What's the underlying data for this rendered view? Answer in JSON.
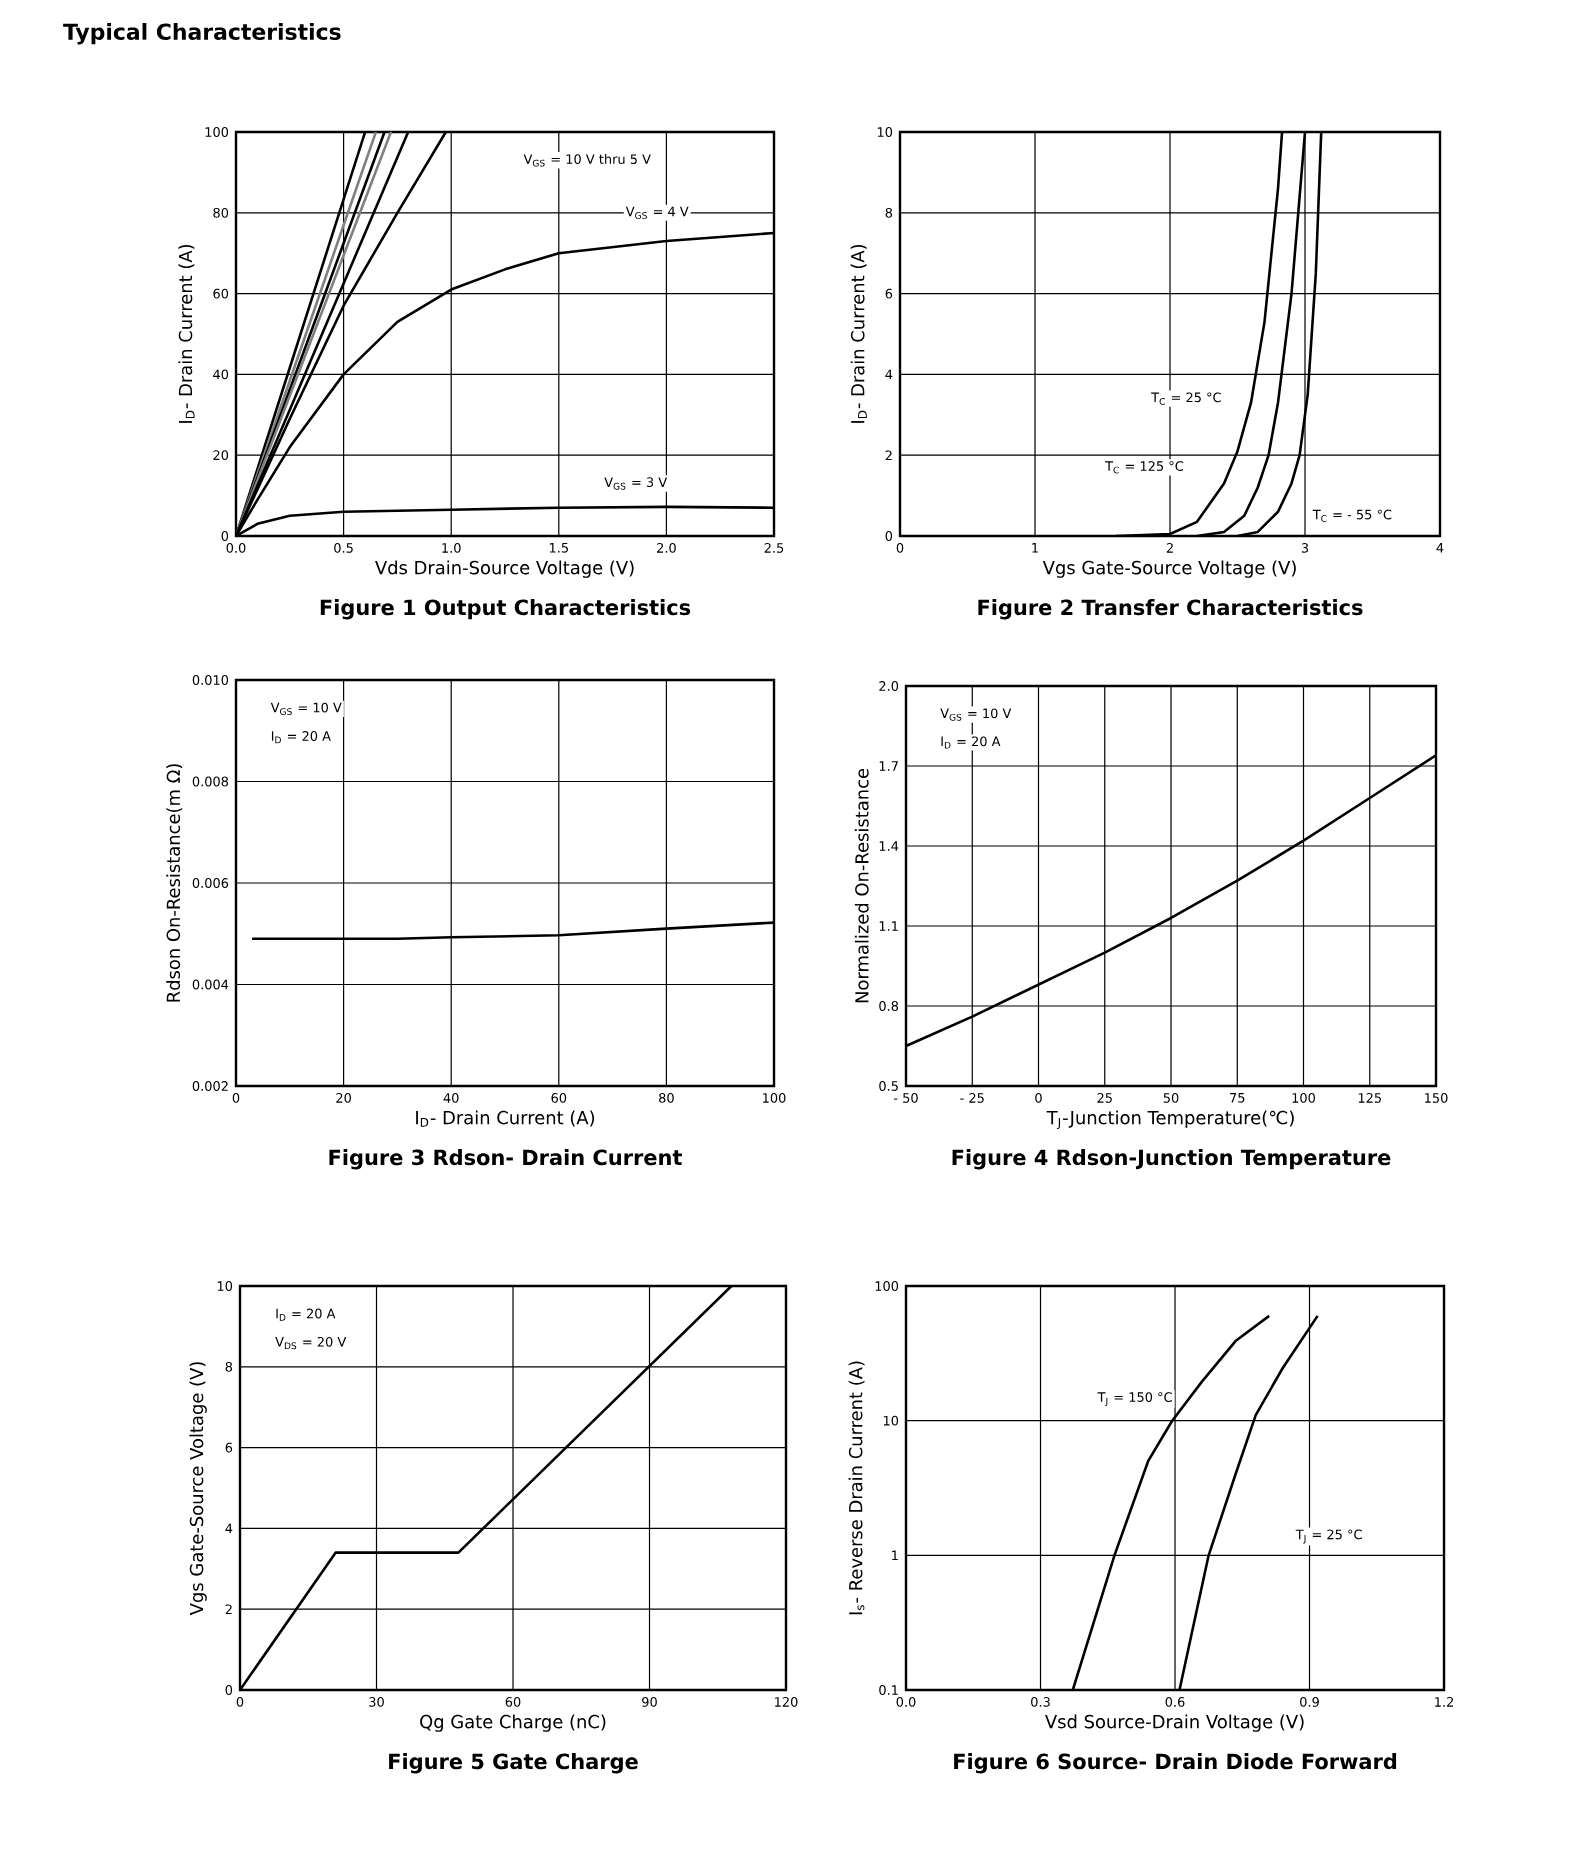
{
  "chart_data": [
    {
      "type": "other",
      "title": "Typical Characteristics"
    },
    {
      "type": "line",
      "title": "Figure 1 Output Characteristics",
      "xlabel": "Vds Drain-Source Voltage (V)",
      "ylabel": "I$_{D}$- Drain Current (A)",
      "xlim": [
        0,
        2.5
      ],
      "ylim": [
        0,
        100
      ],
      "xticks": [
        {
          "value": 0,
          "label": "0.0"
        },
        0.5,
        {
          "value": 1,
          "label": "1.0"
        },
        1.5,
        {
          "value": 2,
          "label": "2.0"
        },
        2.5
      ],
      "yticks": [
        0,
        20,
        40,
        60,
        80,
        100
      ],
      "grid": true,
      "series": [
        {
          "color": "#000000",
          "x": [
            0,
            0.3,
            0.6
          ],
          "values": [
            0,
            50,
            100
          ]
        },
        {
          "color": "#808080",
          "x": [
            0,
            0.325,
            0.65
          ],
          "values": [
            0,
            50,
            100
          ]
        },
        {
          "color": "#000000",
          "x": [
            0,
            0.345,
            0.69
          ],
          "values": [
            0,
            50,
            100
          ]
        },
        {
          "color": "#808080",
          "x": [
            0,
            0.36,
            0.72
          ],
          "values": [
            0,
            50,
            100
          ]
        },
        {
          "color": "#000000",
          "x": [
            0,
            0.4,
            0.8
          ],
          "values": [
            0,
            50,
            100
          ]
        },
        {
          "color": "#000000",
          "x": [
            0,
            0.25,
            0.5,
            0.75,
            0.975
          ],
          "values": [
            0,
            29,
            57,
            80,
            100
          ]
        },
        {
          "color": "#000000",
          "x": [
            0,
            0.1,
            0.25,
            0.5,
            0.75,
            1.0,
            1.25,
            1.5,
            2.0,
            2.5
          ],
          "values": [
            0,
            9,
            22,
            40,
            53,
            61,
            66,
            70,
            73,
            75
          ]
        },
        {
          "color": "#000000",
          "x": [
            0,
            0.1,
            0.25,
            0.5,
            1.0,
            1.5,
            2.0,
            2.5
          ],
          "values": [
            0,
            3,
            5,
            6,
            6.5,
            7,
            7.2,
            7
          ]
        }
      ],
      "annotations": [
        "V$_{GS}$ = 10 V thru 5 V",
        "V$_{GS}$ = 4 V",
        "V$_{GS}$ = 3 V"
      ]
    },
    {
      "type": "line",
      "title": "Figure 2 Transfer Characteristics",
      "xlabel": "Vgs Gate-Source Voltage (V)",
      "ylabel": "I$_{D}$- Drain Current (A)",
      "xlim": [
        0,
        4
      ],
      "ylim": [
        0,
        10
      ],
      "xticks": [
        0,
        1,
        2,
        3,
        4
      ],
      "yticks": [
        0,
        2,
        4,
        6,
        8,
        10
      ],
      "grid": true,
      "series": [
        {
          "color": "#000000",
          "x": [
            1.6,
            2.0,
            2.2,
            2.4,
            2.5,
            2.6,
            2.7,
            2.8,
            2.83
          ],
          "values": [
            0,
            0.05,
            0.35,
            1.3,
            2.1,
            3.3,
            5.3,
            8.6,
            10
          ]
        },
        {
          "color": "#000000",
          "x": [
            2.2,
            2.4,
            2.55,
            2.65,
            2.73,
            2.8,
            2.9,
            3.0
          ],
          "values": [
            0,
            0.1,
            0.5,
            1.2,
            2.0,
            3.3,
            6.0,
            10
          ]
        },
        {
          "color": "#000000",
          "x": [
            2.5,
            2.65,
            2.8,
            2.9,
            2.96,
            3.02,
            3.08,
            3.12
          ],
          "values": [
            0,
            0.1,
            0.6,
            1.3,
            2.0,
            3.5,
            6.5,
            10
          ]
        }
      ],
      "annotations": [
        "T$_{C}$ = 25 °C",
        "T$_{C}$ = 125 °C",
        "T$_{C}$ = - 55 °C"
      ]
    },
    {
      "type": "line",
      "title": "Figure 3 Rdson- Drain Current",
      "xlabel": "I$_{D}$- Drain Current (A)",
      "ylabel": "Rdson On-Resistance(m Ω)",
      "xlim": [
        0,
        100
      ],
      "ylim": [
        0.002,
        0.01
      ],
      "xticks": [
        0,
        20,
        40,
        60,
        80,
        100
      ],
      "yticks": [
        {
          "value": 0.002,
          "label": "0.002"
        },
        {
          "value": 0.004,
          "label": "0.004"
        },
        {
          "value": 0.006,
          "label": "0.006"
        },
        {
          "value": 0.008,
          "label": "0.008"
        },
        {
          "value": 0.01,
          "label": "0.010"
        }
      ],
      "grid": true,
      "series": [
        {
          "color": "#000000",
          "x": [
            3,
            20,
            30,
            40,
            60,
            80,
            100
          ],
          "values": [
            0.0049,
            0.0049,
            0.0049,
            0.00493,
            0.00497,
            0.0051,
            0.00522
          ]
        }
      ],
      "annotations": [
        "V$_{GS}$ = 10 V",
        "I$_{D}$ = 20 A"
      ]
    },
    {
      "type": "line",
      "title": "Figure 4 Rdson-Junction Temperature",
      "xlabel": "T$_{J}$-Junction Temperature(℃)",
      "ylabel": "Normalized On-Resistance",
      "xlim": [
        -50,
        150
      ],
      "ylim": [
        0.5,
        2.0
      ],
      "xticks": [
        {
          "value": -50,
          "label": "- 50"
        },
        {
          "value": -25,
          "label": "- 25"
        },
        0,
        25,
        50,
        75,
        100,
        125,
        150
      ],
      "yticks": [
        0.5,
        0.8,
        1.1,
        1.4,
        1.7,
        {
          "value": 2,
          "label": "2.0"
        }
      ],
      "grid": true,
      "series": [
        {
          "color": "#000000",
          "x": [
            -50,
            -25,
            0,
            25,
            50,
            75,
            100,
            125,
            150
          ],
          "values": [
            0.65,
            0.76,
            0.88,
            1.0,
            1.13,
            1.27,
            1.42,
            1.58,
            1.74
          ]
        }
      ],
      "annotations": [
        "V$_{GS}$ = 10 V",
        "I$_{D}$ = 20 A"
      ]
    },
    {
      "type": "line",
      "title": "Figure 5 Gate Charge",
      "xlabel": "Qg Gate Charge (nC)",
      "ylabel": "Vgs Gate-Source Voltage (V)",
      "xlim": [
        0,
        120
      ],
      "ylim": [
        0,
        10
      ],
      "xticks": [
        0,
        30,
        60,
        90,
        120
      ],
      "yticks": [
        0,
        2,
        4,
        6,
        8,
        10
      ],
      "grid": true,
      "series": [
        {
          "color": "#000000",
          "x": [
            0,
            21,
            48,
            108
          ],
          "values": [
            0,
            3.4,
            3.4,
            10
          ]
        }
      ],
      "annotations": [
        "I$_{D}$ = 20 A",
        "V$_{DS}$ = 20 V"
      ]
    },
    {
      "type": "line",
      "title": "Figure 6 Source- Drain Diode Forward",
      "xlabel": "Vsd Source-Drain Voltage (V)",
      "ylabel": "I$_{s}$- Reverse Drain Current (A)",
      "log": "y",
      "xlim": [
        0,
        1.2
      ],
      "ylim": [
        0.1,
        100
      ],
      "xticks": [
        {
          "value": 0,
          "label": "0.0"
        },
        0.3,
        0.6,
        0.9,
        1.2
      ],
      "yticks": [
        0.1,
        1,
        10,
        100
      ],
      "grid": true,
      "series": [
        {
          "color": "#000000",
          "x": [
            0.372,
            0.465,
            0.54,
            0.593,
            0.66,
            0.735,
            0.81
          ],
          "values": [
            0.1,
            1.0,
            5,
            9.9,
            19.5,
            39,
            60
          ]
        },
        {
          "color": "#000000",
          "x": [
            0.61,
            0.675,
            0.735,
            0.78,
            0.84,
            0.918
          ],
          "values": [
            0.1,
            1,
            4,
            11,
            24.5,
            60
          ]
        }
      ],
      "annotations": [
        "T$_{J}$ = 150 °C",
        "T$_{J}$ = 25 °C"
      ]
    }
  ]
}
